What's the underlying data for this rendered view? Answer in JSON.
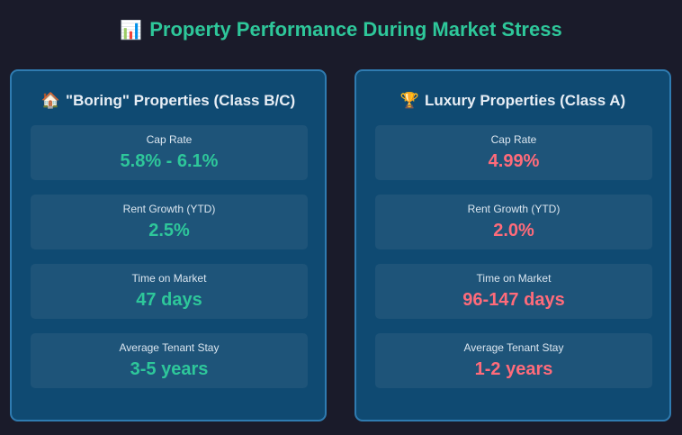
{
  "header": {
    "icon": "bar-chart-icon",
    "icon_glyph": "📊",
    "title": "Property Performance During Market Stress"
  },
  "colors": {
    "background": "#1a1b2a",
    "card": "#0f4a72",
    "accent_green": "#2ec79a",
    "accent_red": "#ff6b7a"
  },
  "boring": {
    "icon": "house-icon",
    "icon_glyph": "🏠",
    "title": "\"Boring\" Properties (Class B/C)",
    "metrics": [
      {
        "label": "Cap Rate",
        "value": "5.8% - 6.1%"
      },
      {
        "label": "Rent Growth (YTD)",
        "value": "2.5%"
      },
      {
        "label": "Time on Market",
        "value": "47 days"
      },
      {
        "label": "Average Tenant Stay",
        "value": "3-5 years"
      }
    ]
  },
  "luxury": {
    "icon": "trophy-icon",
    "icon_glyph": "🏆",
    "title": "Luxury Properties (Class A)",
    "metrics": [
      {
        "label": "Cap Rate",
        "value": "4.99%"
      },
      {
        "label": "Rent Growth (YTD)",
        "value": "2.0%"
      },
      {
        "label": "Time on Market",
        "value": "96-147 days"
      },
      {
        "label": "Average Tenant Stay",
        "value": "1-2 years"
      }
    ]
  }
}
